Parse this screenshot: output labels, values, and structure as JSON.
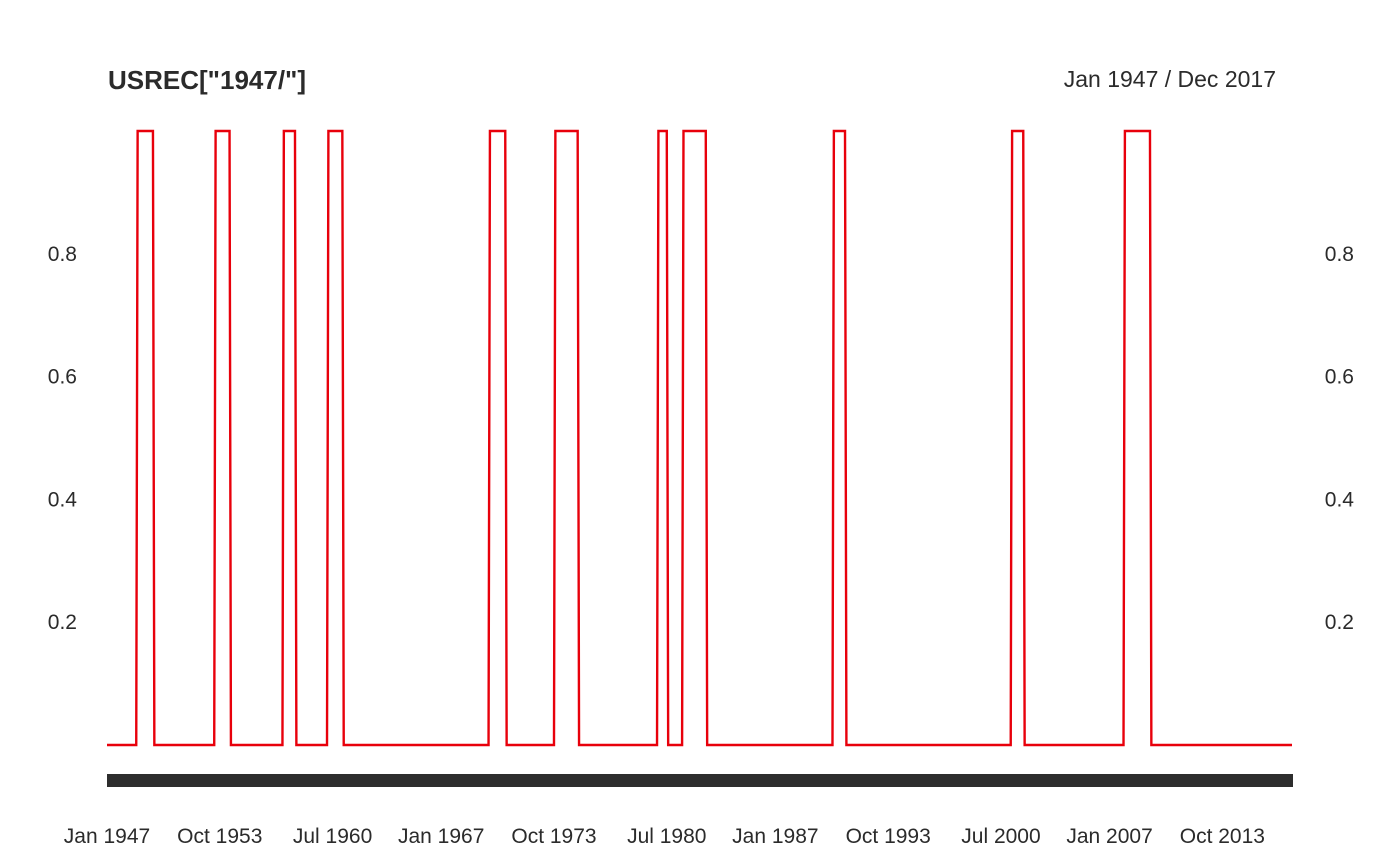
{
  "chart_data": {
    "type": "line",
    "title": "USREC[\"1947/\"]",
    "date_range_label": "Jan 1947 / Dec 2017",
    "x_start": "Jan 1947",
    "x_end": "Dec 2017",
    "ylim": [
      0,
      1
    ],
    "y_tick_values": [
      0.2,
      0.4,
      0.6,
      0.8
    ],
    "y_tick_labels": [
      "0.2",
      "0.4",
      "0.6",
      "0.8"
    ],
    "x_tick_labels": [
      "Jan 1947",
      "Oct 1953",
      "Jul 1960",
      "Jan 1967",
      "Oct 1973",
      "Jul 1980",
      "Jan 1987",
      "Oct 1993",
      "Jul 2000",
      "Jan 2007",
      "Oct 2013"
    ],
    "grid": false,
    "series": [
      {
        "color": "#e8000b",
        "recessions": [
          {
            "start": "Nov 1948",
            "end": "Oct 1949"
          },
          {
            "start": "Jul 1953",
            "end": "May 1954"
          },
          {
            "start": "Aug 1957",
            "end": "Apr 1958"
          },
          {
            "start": "Apr 1960",
            "end": "Feb 1961"
          },
          {
            "start": "Dec 1969",
            "end": "Nov 1970"
          },
          {
            "start": "Nov 1973",
            "end": "Mar 1975"
          },
          {
            "start": "Jan 1980",
            "end": "Jul 1980"
          },
          {
            "start": "Jul 1981",
            "end": "Nov 1982"
          },
          {
            "start": "Jul 1990",
            "end": "Mar 1991"
          },
          {
            "start": "Mar 2001",
            "end": "Nov 2001"
          },
          {
            "start": "Dec 2007",
            "end": "Jun 2009"
          }
        ]
      }
    ]
  }
}
